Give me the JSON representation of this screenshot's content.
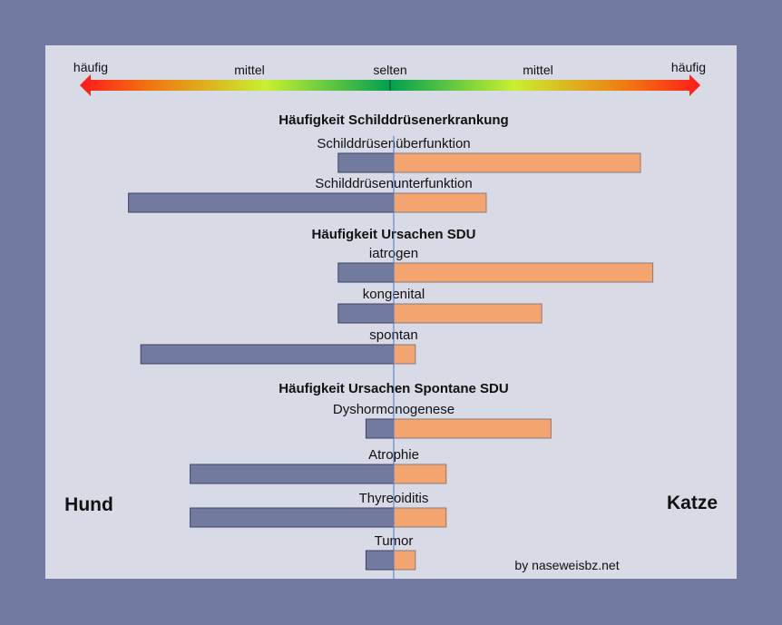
{
  "chart_data": {
    "type": "bar",
    "orientation": "horizontal-diverging",
    "scale_labels": [
      "häufig",
      "mittel",
      "selten",
      "mittel",
      "häufig"
    ],
    "scale_note": "values are relative frequency, 0 = selten (center), 1 = häufig (arrow tip)",
    "left_label": "Hund",
    "right_label": "Katze",
    "credit": "by naseweisbz.net",
    "colors": {
      "Hund": "#737aa0",
      "Katze": "#f4a46f",
      "center_line": "#4a78c8"
    },
    "groups": [
      {
        "title": "Häufigkeit Schilddrüsenerkrankung",
        "items": [
          {
            "label": "Schilddrüsenüberfunktion",
            "Hund": 0.18,
            "Katze": 0.8
          },
          {
            "label": "Schilddrüsenunterfunktion",
            "Hund": 0.86,
            "Katze": 0.3
          }
        ]
      },
      {
        "title": "Häufigkeit Ursachen SDU",
        "items": [
          {
            "label": "iatrogen",
            "Hund": 0.18,
            "Katze": 0.84
          },
          {
            "label": "kongenital",
            "Hund": 0.18,
            "Katze": 0.48
          },
          {
            "label": "spontan",
            "Hund": 0.82,
            "Katze": 0.07
          }
        ]
      },
      {
        "title": "Häufigkeit Ursachen Spontane SDU",
        "items": [
          {
            "label": "Dyshormonogenese",
            "Hund": 0.09,
            "Katze": 0.51
          },
          {
            "label": "Atrophie",
            "Hund": 0.66,
            "Katze": 0.17
          },
          {
            "label": "Thyreoiditis",
            "Hund": 0.66,
            "Katze": 0.17
          },
          {
            "label": "Tumor",
            "Hund": 0.09,
            "Katze": 0.07
          }
        ]
      }
    ]
  }
}
